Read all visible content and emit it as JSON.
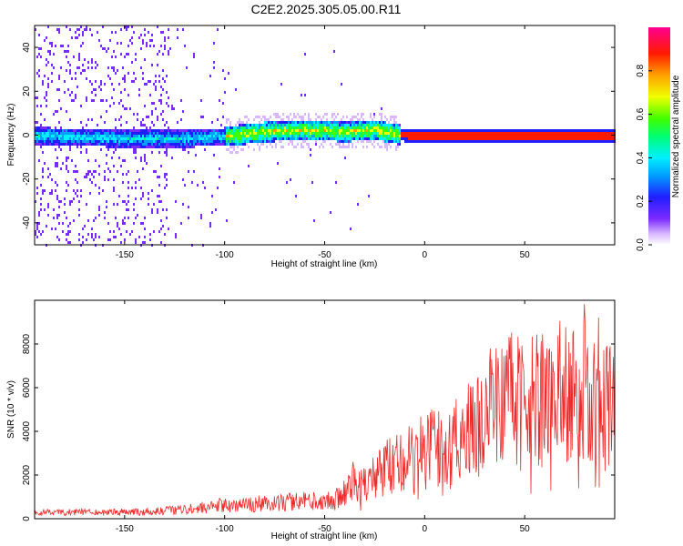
{
  "figure": {
    "title": "C2E2.2025.305.05.00.R11"
  },
  "colors": {
    "snr_line": "#ee2a2a",
    "axis": "#000000",
    "background": "#ffffff"
  },
  "chart_data": [
    {
      "type": "heatmap",
      "xlabel": "Height of straight line (km)",
      "ylabel": "Frequency (Hz)",
      "xlim": [
        -195,
        95
      ],
      "ylim": [
        -50,
        50
      ],
      "xticks": [
        -150,
        -100,
        -50,
        0,
        50
      ],
      "yticks": [
        -40,
        -20,
        0,
        20,
        40
      ],
      "colorbar": {
        "label": "Normalized spectral amplitude",
        "range": [
          0,
          1
        ],
        "ticks": [
          0.0,
          0.2,
          0.4,
          0.6,
          0.8
        ],
        "colormap": "rainbow (violet→blue→cyan→green→yellow→red→magenta)"
      },
      "center_frequency_track": [
        {
          "x": -190,
          "y": 0
        },
        {
          "x": -150,
          "y": -1
        },
        {
          "x": -120,
          "y": -1
        },
        {
          "x": -100,
          "y": 0
        },
        {
          "x": -80,
          "y": 2
        },
        {
          "x": -60,
          "y": 3
        },
        {
          "x": -40,
          "y": 2
        },
        {
          "x": -25,
          "y": 3
        },
        {
          "x": -15,
          "y": 1
        },
        {
          "x": 0,
          "y": 0
        },
        {
          "x": 50,
          "y": 0
        },
        {
          "x": 95,
          "y": 0
        }
      ]
    },
    {
      "type": "line",
      "xlabel": "Height of straight line (km)",
      "ylabel": "SNR (10 * v/v)",
      "xlim": [
        -195,
        95
      ],
      "ylim": [
        0,
        10000
      ],
      "xticks": [
        -150,
        -100,
        -50,
        0,
        50
      ],
      "yticks": [
        0,
        2000,
        4000,
        6000,
        8000
      ],
      "series": [
        {
          "values_envelope": [
            {
              "x": -195,
              "y": 300
            },
            {
              "x": -150,
              "y": 300
            },
            {
              "x": -130,
              "y": 350
            },
            {
              "x": -110,
              "y": 500
            },
            {
              "x": -100,
              "y": 600
            },
            {
              "x": -80,
              "y": 700
            },
            {
              "x": -60,
              "y": 800
            },
            {
              "x": -45,
              "y": 900
            },
            {
              "x": -40,
              "y": 1400
            },
            {
              "x": -35,
              "y": 1700
            },
            {
              "x": -30,
              "y": 1600
            },
            {
              "x": -25,
              "y": 1800
            },
            {
              "x": -20,
              "y": 2200
            },
            {
              "x": -15,
              "y": 2500
            },
            {
              "x": -10,
              "y": 2800
            },
            {
              "x": -5,
              "y": 2600
            },
            {
              "x": 0,
              "y": 3000
            },
            {
              "x": 5,
              "y": 3200
            },
            {
              "x": 10,
              "y": 3000
            },
            {
              "x": 15,
              "y": 3600
            },
            {
              "x": 20,
              "y": 3800
            },
            {
              "x": 25,
              "y": 4000
            },
            {
              "x": 30,
              "y": 4500
            },
            {
              "x": 35,
              "y": 5500
            },
            {
              "x": 40,
              "y": 5200
            },
            {
              "x": 45,
              "y": 5400
            },
            {
              "x": 50,
              "y": 5000
            },
            {
              "x": 55,
              "y": 5800
            },
            {
              "x": 60,
              "y": 5300
            },
            {
              "x": 65,
              "y": 5600
            },
            {
              "x": 70,
              "y": 6000
            },
            {
              "x": 75,
              "y": 5500
            },
            {
              "x": 80,
              "y": 6200
            },
            {
              "x": 85,
              "y": 5800
            },
            {
              "x": 90,
              "y": 5000
            },
            {
              "x": 95,
              "y": 5600
            }
          ]
        }
      ]
    }
  ]
}
